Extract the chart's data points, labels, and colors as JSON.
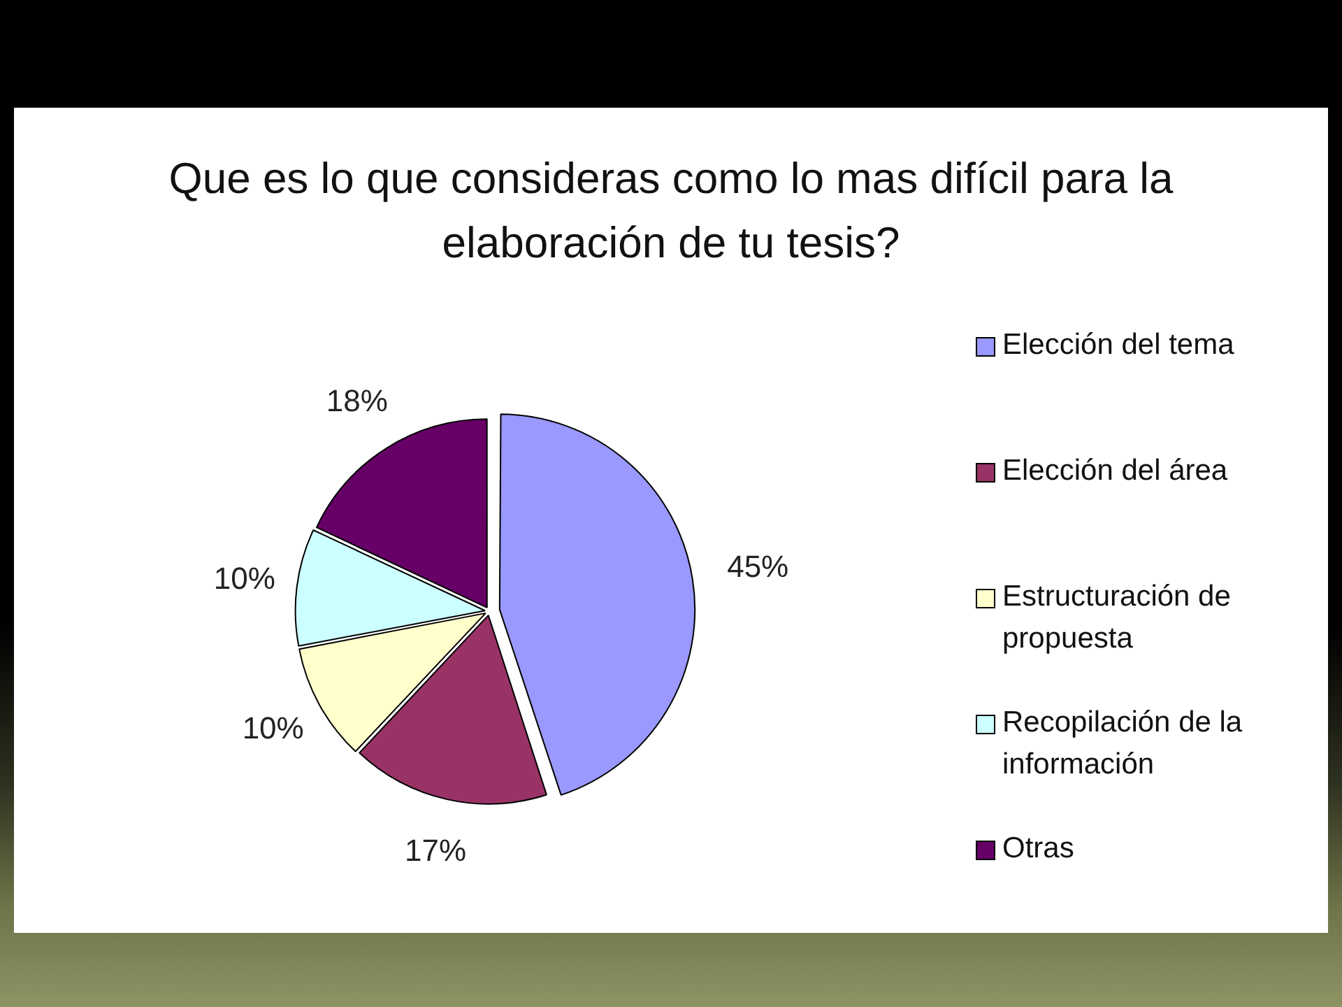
{
  "chart_data": {
    "type": "pie",
    "title": "Que es lo que consideras como lo mas difícil para la elaboración de tu tesis?",
    "categories": [
      "Elección del tema",
      "Elección del área",
      "Estructuración de propuesta",
      "Recopilación de la información",
      "Otras"
    ],
    "values": [
      45,
      17,
      10,
      10,
      18
    ],
    "value_labels": [
      "45%",
      "17%",
      "10%",
      "10%",
      "18%"
    ],
    "colors": [
      "#9999ff",
      "#993366",
      "#ffffcc",
      "#ccffff",
      "#660066"
    ],
    "legend": "right"
  }
}
